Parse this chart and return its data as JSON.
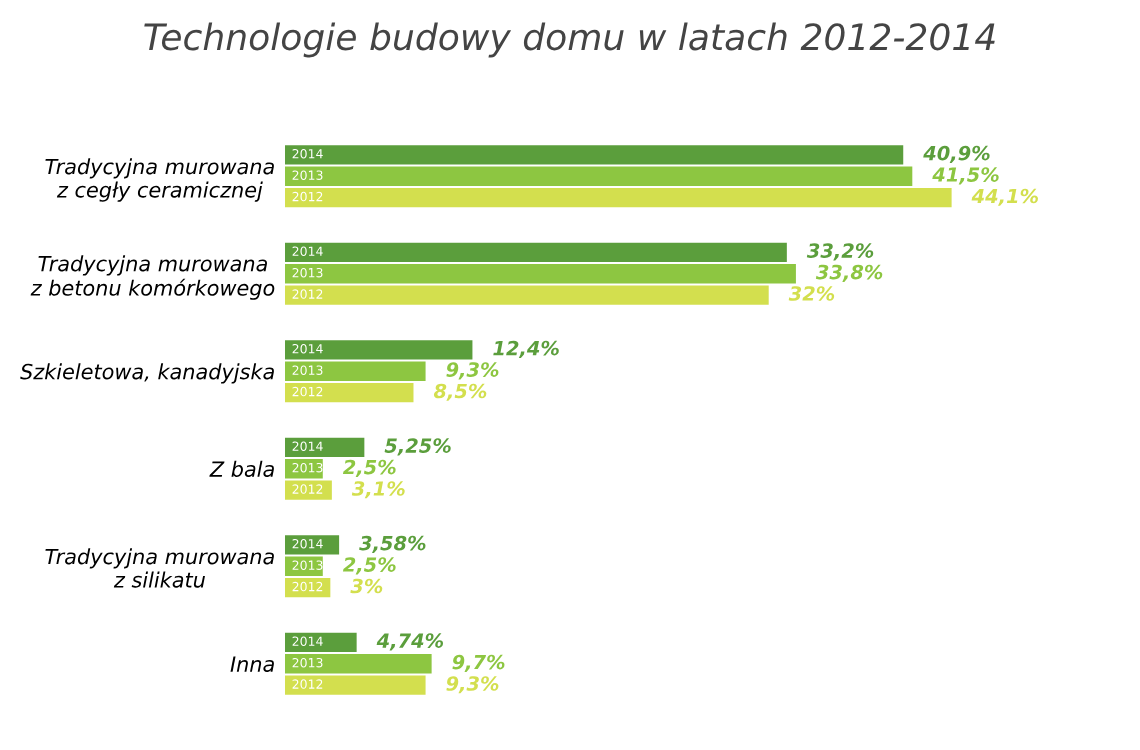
{
  "chart_data": {
    "type": "bar",
    "orientation": "horizontal",
    "title": "Technologie budowy domu w latach 2012-2014",
    "categories": [
      "Tradycyjna murowana\nz cegły ceramicznej",
      "Tradycyjna murowana\nz betonu komórkowego",
      "Szkieletowa, kanadyjska",
      "Z bala",
      "Tradycyjna murowana\nz silikatu",
      "Inna"
    ],
    "series": [
      {
        "name": "2014",
        "color": "#5b9e3c",
        "values": [
          40.9,
          33.2,
          12.4,
          5.25,
          3.58,
          4.74
        ],
        "value_labels": [
          "40,9%",
          "33,2%",
          "12,4%",
          "5,25%",
          "3,58%",
          "4,74%"
        ]
      },
      {
        "name": "2013",
        "color": "#8dc641",
        "values": [
          41.5,
          33.8,
          9.3,
          2.5,
          2.5,
          9.7
        ],
        "value_labels": [
          "41,5%",
          "33,8%",
          "9,3%",
          "2,5%",
          "2,5%",
          "9,7%"
        ]
      },
      {
        "name": "2012",
        "color": "#d3df4e",
        "values": [
          44.1,
          32,
          8.5,
          3.1,
          3,
          9.3
        ],
        "value_labels": [
          "44,1%",
          "32%",
          "8,5%",
          "3,1%",
          "3%",
          "9,3%"
        ]
      }
    ],
    "legend": false,
    "grid": false
  }
}
